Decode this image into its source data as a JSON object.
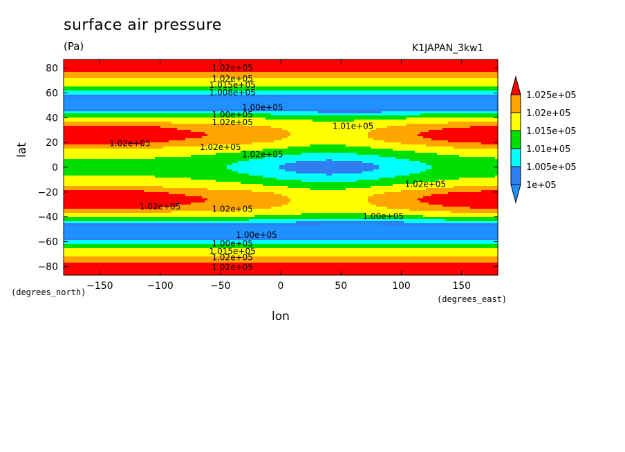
{
  "chart_data": {
    "type": "heatmap",
    "title": "surface air pressure",
    "units": "(Pa)",
    "run_label": "K1JAPAN_3kw1",
    "xlabel": "lon",
    "ylabel": "lat",
    "x_units_label": "(degrees_east)",
    "y_units_label": "(degrees_north)",
    "xlim": [
      -180,
      180
    ],
    "ylim": [
      -87,
      87
    ],
    "x_ticks": [
      -150,
      -100,
      -50,
      0,
      50,
      100,
      150
    ],
    "y_ticks": [
      -80,
      -60,
      -40,
      -20,
      0,
      20,
      40,
      60,
      80
    ],
    "grid": false,
    "colorbar": {
      "placement": "right",
      "extend": "both",
      "levels": [
        100000,
        100500,
        101000,
        101500,
        102000,
        102500
      ],
      "labels": [
        "1e+05",
        "1.005e+05",
        "1.01e+05",
        "1.015e+05",
        "1.02e+05",
        "1.025e+05"
      ],
      "colors": [
        "#1e90ff",
        "#2f7ff0",
        "#00ffff",
        "#00e000",
        "#ffff00",
        "#ffa500",
        "#ff0000"
      ],
      "below_color": "#1e90ff",
      "above_color": "#ff0000"
    },
    "contour_labels": [
      {
        "text": "1.02e+05",
        "lon": -40,
        "lat": 80
      },
      {
        "text": "1.02e+05",
        "lon": -40,
        "lat": 71
      },
      {
        "text": "1.015e+05",
        "lon": -40,
        "lat": 66
      },
      {
        "text": "1.008e+05",
        "lon": -40,
        "lat": 60
      },
      {
        "text": "1.00e+05",
        "lon": -15,
        "lat": 48
      },
      {
        "text": "1.00e+05",
        "lon": -40,
        "lat": 42
      },
      {
        "text": "1.02e+05",
        "lon": -40,
        "lat": 36
      },
      {
        "text": "1.01e+05",
        "lon": 60,
        "lat": 33
      },
      {
        "text": "1.02e+05",
        "lon": -125,
        "lat": 19
      },
      {
        "text": "1.02e+05",
        "lon": -50,
        "lat": 16
      },
      {
        "text": "1.02e+05",
        "lon": -15,
        "lat": 10
      },
      {
        "text": "1.02e+05",
        "lon": 120,
        "lat": -14
      },
      {
        "text": "1.02e+05",
        "lon": -100,
        "lat": -32
      },
      {
        "text": "1.02e+05",
        "lon": -40,
        "lat": -34
      },
      {
        "text": "1.00e+05",
        "lon": 85,
        "lat": -40
      },
      {
        "text": "1.00e+05",
        "lon": -20,
        "lat": -55
      },
      {
        "text": "1.00e+05",
        "lon": -40,
        "lat": -62
      },
      {
        "text": "1.015e+05",
        "lon": -40,
        "lat": -68
      },
      {
        "text": "1.02e+05",
        "lon": -40,
        "lat": -73
      },
      {
        "text": "1.02e+05",
        "lon": -40,
        "lat": -81
      }
    ]
  }
}
